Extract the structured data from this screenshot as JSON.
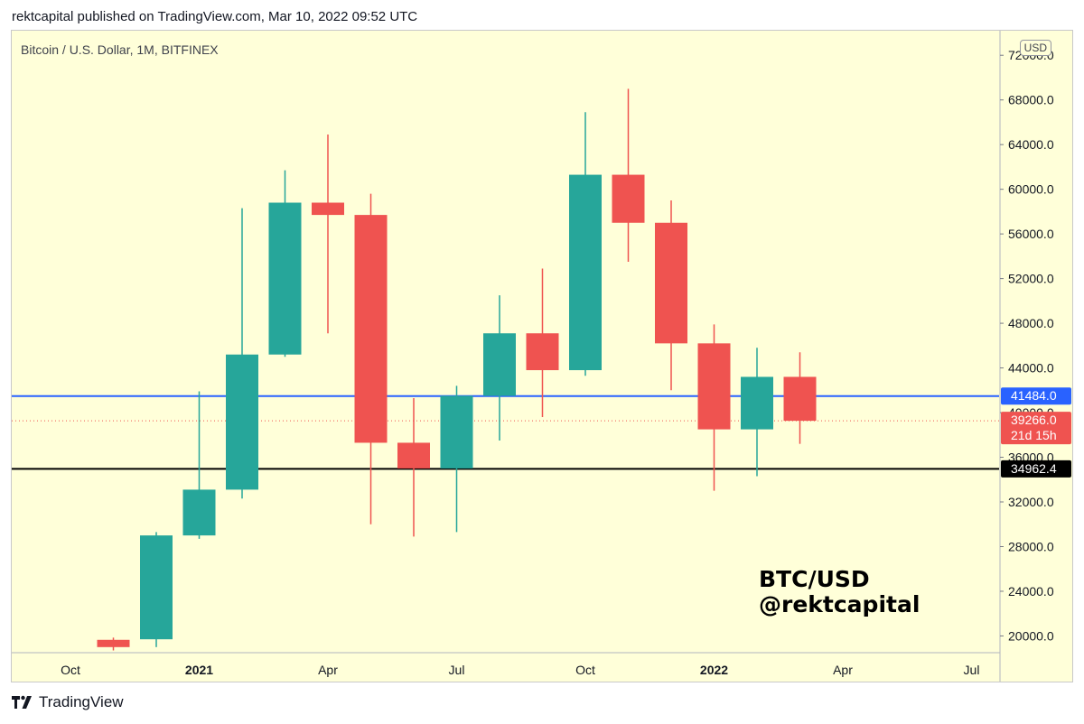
{
  "header": {
    "published": "rektcapital published on TradingView.com, Mar 10, 2022 09:52 UTC"
  },
  "symbol_line": "Bitcoin / U.S. Dollar, 1M, BITFINEX",
  "currency_button": "USD",
  "watermark": {
    "line1": "BTC/USD",
    "line2": "@rektcapital"
  },
  "footer": {
    "brand": "TradingView",
    "logo_icon": "tradingview-logo-icon"
  },
  "colors": {
    "background": "#ffffd9",
    "up": "#26a69a",
    "down": "#ef5350",
    "blue_line": "#2962ff",
    "black_line": "#000000",
    "text": "#131722"
  },
  "chart_data": {
    "type": "candlestick",
    "title": "Bitcoin / U.S. Dollar, 1M, BITFINEX",
    "ylim": [
      18500,
      74200
    ],
    "y_ticks": [
      20000,
      24000,
      28000,
      32000,
      36000,
      40000,
      44000,
      48000,
      52000,
      56000,
      60000,
      64000,
      68000,
      72000
    ],
    "y_tick_labels": [
      "20000.0",
      "24000.0",
      "28000.0",
      "32000.0",
      "36000.0",
      "40000.0",
      "44000.0",
      "48000.0",
      "52000.0",
      "56000.0",
      "60000.0",
      "64000.0",
      "68000.0",
      "72000.0"
    ],
    "x_labels": [
      {
        "text": "Oct",
        "index": 0,
        "bold": false
      },
      {
        "text": "2021",
        "index": 3,
        "bold": true
      },
      {
        "text": "Apr",
        "index": 6,
        "bold": false
      },
      {
        "text": "Jul",
        "index": 9,
        "bold": false
      },
      {
        "text": "Oct",
        "index": 12,
        "bold": false
      },
      {
        "text": "2022",
        "index": 15,
        "bold": true
      },
      {
        "text": "Apr",
        "index": 18,
        "bold": false
      },
      {
        "text": "Jul",
        "index": 21,
        "bold": false
      }
    ],
    "candles": [
      {
        "month": "2020-11",
        "open": 19650,
        "high": 19850,
        "low": 18700,
        "close": 19000
      },
      {
        "month": "2020-12",
        "open": 19700,
        "high": 29300,
        "low": 19000,
        "close": 29000
      },
      {
        "month": "2021-01",
        "open": 29000,
        "high": 41900,
        "low": 28700,
        "close": 33100
      },
      {
        "month": "2021-02",
        "open": 33100,
        "high": 58300,
        "low": 32300,
        "close": 45200
      },
      {
        "month": "2021-03",
        "open": 45200,
        "high": 61700,
        "low": 45000,
        "close": 58800
      },
      {
        "month": "2021-04",
        "open": 58800,
        "high": 64900,
        "low": 47100,
        "close": 57700
      },
      {
        "month": "2021-05",
        "open": 57700,
        "high": 59600,
        "low": 30000,
        "close": 37300
      },
      {
        "month": "2021-06",
        "open": 37300,
        "high": 41300,
        "low": 28900,
        "close": 35000
      },
      {
        "month": "2021-07",
        "open": 35000,
        "high": 42400,
        "low": 29300,
        "close": 41500
      },
      {
        "month": "2021-08",
        "open": 41500,
        "high": 50500,
        "low": 37500,
        "close": 47100
      },
      {
        "month": "2021-09",
        "open": 47100,
        "high": 52900,
        "low": 39600,
        "close": 43800
      },
      {
        "month": "2021-10",
        "open": 43800,
        "high": 66900,
        "low": 43300,
        "close": 61300
      },
      {
        "month": "2021-11",
        "open": 61300,
        "high": 69000,
        "low": 53500,
        "close": 57000
      },
      {
        "month": "2021-12",
        "open": 57000,
        "high": 59000,
        "low": 42000,
        "close": 46200
      },
      {
        "month": "2022-01",
        "open": 46200,
        "high": 47900,
        "low": 33000,
        "close": 38500
      },
      {
        "month": "2022-02",
        "open": 38500,
        "high": 45800,
        "low": 34300,
        "close": 43200
      },
      {
        "month": "2022-03",
        "open": 43200,
        "high": 45400,
        "low": 37200,
        "close": 39266
      }
    ],
    "horizontal_lines": [
      {
        "price": 41484.0,
        "label": "41484.0",
        "color": "#2962ff"
      },
      {
        "price": 34962.4,
        "label": "34962.4",
        "color": "#000000"
      }
    ],
    "current_price": {
      "price": 39266.0,
      "label": "39266.0",
      "countdown": "21d 15h",
      "color": "#ef5350"
    }
  }
}
